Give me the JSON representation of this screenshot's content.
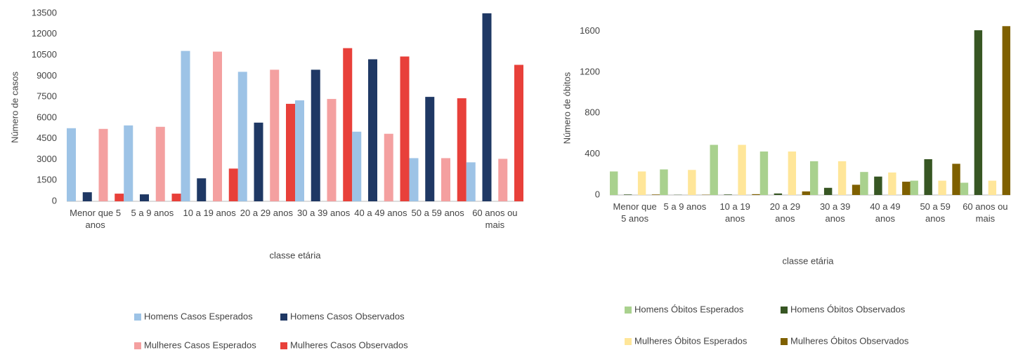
{
  "chart_data": [
    {
      "type": "bar",
      "ylabel": "Número de casos",
      "xlabel": "classe etária",
      "categories": [
        "Menor que 5 anos",
        "5 a 9 anos",
        "10 a 19 anos",
        "20 a 29 anos",
        "30 a 39 anos",
        "40 a 49 anos",
        "50 a 59 anos",
        "60 anos ou mais"
      ],
      "series": [
        {
          "name": "Homens Casos Esperados",
          "color": "#9dc3e6",
          "values": [
            5250,
            5450,
            10800,
            9300,
            7250,
            5000,
            3100,
            2800
          ]
        },
        {
          "name": "Homens Casos Observados",
          "color": "#1f3864",
          "values": [
            650,
            500,
            1650,
            5650,
            9450,
            10200,
            7500,
            13500
          ]
        },
        {
          "name": "Mulheres Casos Esperados",
          "color": "#f4a0a0",
          "values": [
            5200,
            5350,
            10750,
            9450,
            7350,
            4850,
            3100,
            3050
          ]
        },
        {
          "name": "Mulheres Casos Observados",
          "color": "#e8403a",
          "values": [
            550,
            550,
            2350,
            7000,
            11000,
            10400,
            7400,
            9800
          ]
        }
      ],
      "ylim": [
        0,
        13500
      ],
      "yticks": [
        0,
        1500,
        3000,
        4500,
        6000,
        7500,
        9000,
        10500,
        12000,
        13500
      ],
      "grid": false
    },
    {
      "type": "bar",
      "ylabel": "Número de óbitos",
      "xlabel": "classe etária",
      "categories": [
        "Menor que 5 anos",
        "5 a 9 anos",
        "10 a 19 anos",
        "20 a 29 anos",
        "30 a 39 anos",
        "40 a 49 anos",
        "50 a 59 anos",
        "60 anos ou mais"
      ],
      "series": [
        {
          "name": "Homens Óbitos Esperados",
          "color": "#a9d18e",
          "values": [
            230,
            250,
            490,
            425,
            330,
            225,
            140,
            120
          ]
        },
        {
          "name": "Homens Óbitos Observados",
          "color": "#375623",
          "values": [
            5,
            2,
            5,
            15,
            70,
            180,
            350,
            1610
          ]
        },
        {
          "name": "Mulheres Óbitos Esperados",
          "color": "#ffe699",
          "values": [
            230,
            245,
            490,
            425,
            330,
            220,
            140,
            140
          ]
        },
        {
          "name": "Mulheres Óbitos Observados",
          "color": "#7f6000",
          "values": [
            5,
            3,
            8,
            35,
            100,
            130,
            305,
            1650
          ]
        }
      ],
      "ylim": [
        0,
        1700
      ],
      "yticks": [
        0,
        400,
        800,
        1200,
        1600
      ],
      "grid": false
    }
  ]
}
